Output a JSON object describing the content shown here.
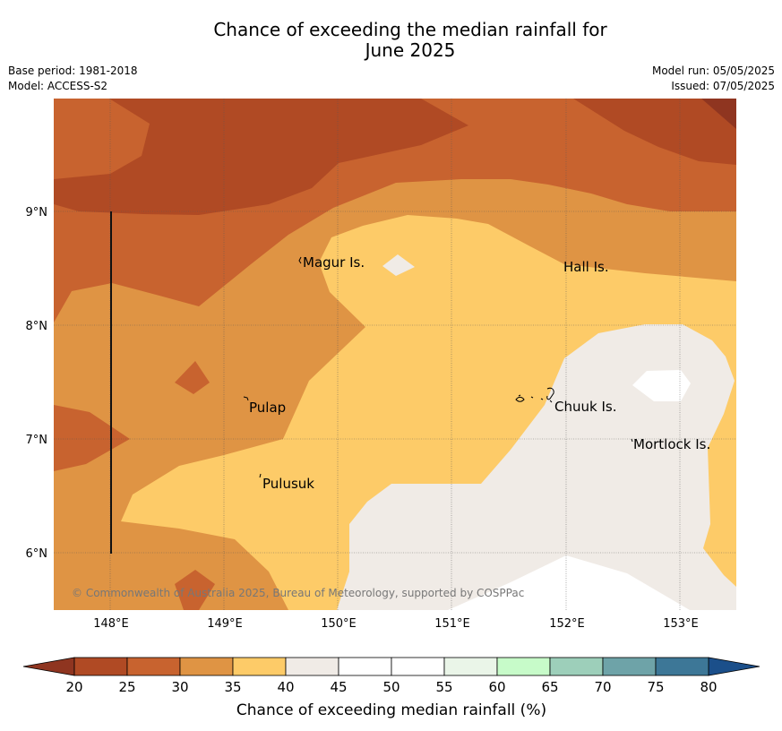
{
  "title_line1": "Chance of exceeding the median rainfall for",
  "title_line2": "June 2025",
  "base_period": "Base period: 1981-2018",
  "model": "Model: ACCESS-S2",
  "model_run": "Model run: 05/05/2025",
  "issued": "Issued: 07/05/2025",
  "copyright": "© Commonwealth of Australia 2025, Bureau of Meteorology, supported by COSPPac",
  "places": [
    "Magur Is.",
    "Hall Is.",
    "Pulap",
    "Chuuk Is.",
    "Mortlock Is.",
    "Pulusuk"
  ],
  "lon_ticks": [
    "148°E",
    "149°E",
    "150°E",
    "151°E",
    "152°E",
    "153°E"
  ],
  "lat_ticks": [
    "9°N",
    "8°N",
    "7°N",
    "6°N"
  ],
  "colorbar": {
    "label": "Chance of exceeding median rainfall (%)",
    "ticks": [
      "20",
      "25",
      "30",
      "35",
      "40",
      "45",
      "50",
      "55",
      "60",
      "65",
      "70",
      "75",
      "80"
    ],
    "colors": [
      "#b04a24",
      "#c8632f",
      "#df9444",
      "#fdcb68",
      "#f0ebe6",
      "#ffffff",
      "#ffffff",
      "#eaf5e8",
      "#c7fbc9",
      "#9dcfba",
      "#6ea3a8",
      "#3d7797"
    ],
    "under_color": "#8f3520",
    "over_color": "#1b4f8a"
  }
}
